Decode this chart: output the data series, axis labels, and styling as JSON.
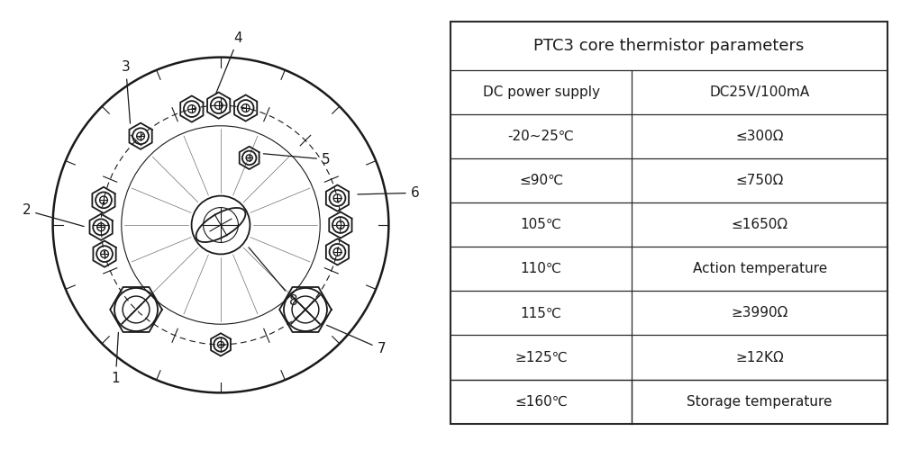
{
  "table_title": "PTC3 core thermistor parameters",
  "table_rows": [
    [
      "DC power supply",
      "DC25V/100mA"
    ],
    [
      "-20~25℃",
      "≤300Ω"
    ],
    [
      "≤90℃",
      "≤750Ω"
    ],
    [
      "105℃",
      "≤1650Ω"
    ],
    [
      "110℃",
      "Action temperature"
    ],
    [
      "115℃",
      "≥3990Ω"
    ],
    [
      "≥125℃",
      "≥12KΩ"
    ],
    [
      "≤160℃",
      "Storage temperature"
    ]
  ],
  "bg_color": "#ffffff",
  "line_color": "#1a1a1a",
  "text_color": "#1a1a1a",
  "title_fontsize": 13,
  "cell_fontsize": 11,
  "diagram_label_fontsize": 11,
  "outer_r": 1.15,
  "bolt_circle_r": 0.82,
  "inner_r": 0.68,
  "center_r": 0.2,
  "center_inner_r": 0.1
}
